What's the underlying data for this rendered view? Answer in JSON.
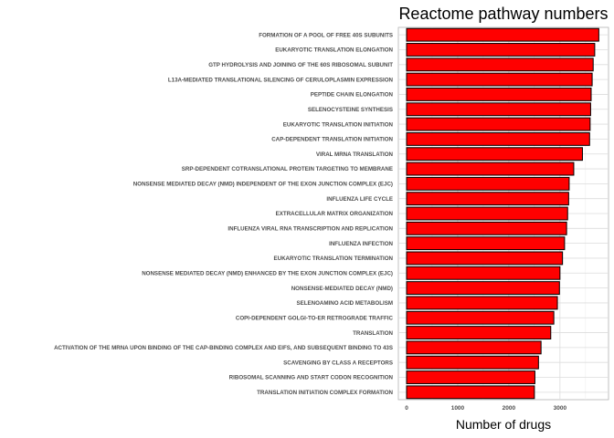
{
  "chart_data": {
    "type": "bar",
    "orientation": "horizontal",
    "title": "Reactome pathway numbers",
    "xlabel": "Number of drugs",
    "ylabel": "",
    "xlim": [
      0,
      3950
    ],
    "x_ticks": [
      0,
      1000,
      2000,
      3000
    ],
    "grid": true,
    "bar_color": "#ff0000",
    "bar_edge_color": "#000000",
    "categories": [
      "FORMATION OF A POOL OF FREE 40S SUBUNITS",
      "EUKARYOTIC TRANSLATION ELONGATION",
      "GTP HYDROLYSIS AND JOINING OF THE 60S RIBOSOMAL SUBUNIT",
      "L13A-MEDIATED TRANSLATIONAL SILENCING OF CERULOPLASMIN EXPRESSION",
      "PEPTIDE CHAIN ELONGATION",
      "SELENOCYSTEINE SYNTHESIS",
      "EUKARYOTIC TRANSLATION INITIATION",
      "CAP-DEPENDENT TRANSLATION INITIATION",
      "VIRAL MRNA TRANSLATION",
      "SRP-DEPENDENT COTRANSLATIONAL PROTEIN TARGETING TO MEMBRANE",
      "NONSENSE MEDIATED DECAY (NMD) INDEPENDENT OF THE EXON JUNCTION COMPLEX (EJC)",
      "INFLUENZA LIFE CYCLE",
      "EXTRACELLULAR MATRIX ORGANIZATION",
      "INFLUENZA VIRAL RNA TRANSCRIPTION AND REPLICATION",
      "INFLUENZA INFECTION",
      "EUKARYOTIC TRANSLATION TERMINATION",
      "NONSENSE MEDIATED DECAY (NMD) ENHANCED BY THE EXON JUNCTION COMPLEX (EJC)",
      "NONSENSE-MEDIATED DECAY (NMD)",
      "SELENOAMINO ACID METABOLISM",
      "COPI-DEPENDENT GOLGI-TO-ER RETROGRADE TRAFFIC",
      "TRANSLATION",
      "ACTIVATION OF THE MRNA UPON BINDING OF THE CAP-BINDING COMPLEX AND EIFS, AND SUBSEQUENT BINDING TO 43S",
      "SCAVENGING BY CLASS A RECEPTORS",
      "RIBOSOMAL SCANNING AND START CODON RECOGNITION",
      "TRANSLATION INITIATION COMPLEX FORMATION"
    ],
    "values": [
      3760,
      3680,
      3650,
      3630,
      3610,
      3600,
      3590,
      3580,
      3440,
      3270,
      3180,
      3170,
      3150,
      3130,
      3090,
      3050,
      3000,
      2990,
      2950,
      2880,
      2820,
      2630,
      2580,
      2510,
      2500
    ]
  }
}
